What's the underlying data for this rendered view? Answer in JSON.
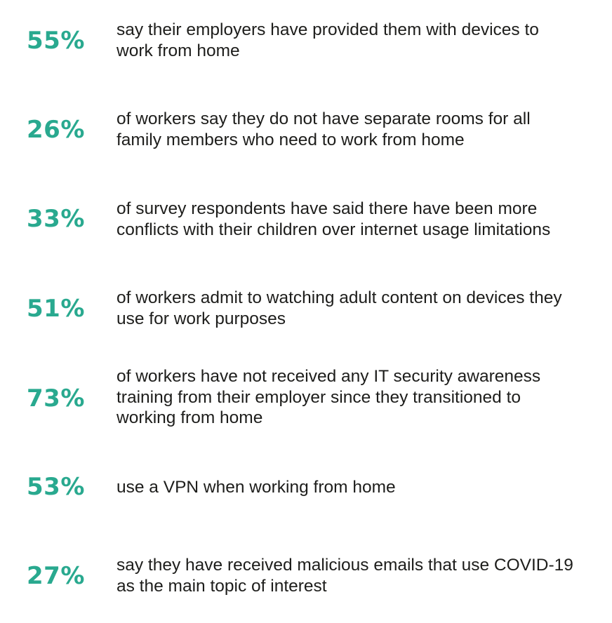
{
  "accent_color": "#29a98f",
  "stats": [
    {
      "percent": "55%",
      "text": "say their employers have provided them with devices to\nwork from home"
    },
    {
      "percent": "26%",
      "text": "of workers say they do not have separate rooms for all\nfamily members who need to work from home"
    },
    {
      "percent": "33%",
      "text": "of survey respondents have said there have been more\nconflicts with their children over internet usage limitations"
    },
    {
      "percent": "51%",
      "text": "of workers admit to watching adult content on devices they\nuse for work purposes"
    },
    {
      "percent": "73%",
      "text": "of workers have not received any IT security awareness\ntraining from their employer since they transitioned to\nworking from home"
    },
    {
      "percent": "53%",
      "text": "use a VPN when working from home"
    },
    {
      "percent": "27%",
      "text": "say they have received malicious emails that use COVID-19\nas the main topic of interest"
    }
  ]
}
